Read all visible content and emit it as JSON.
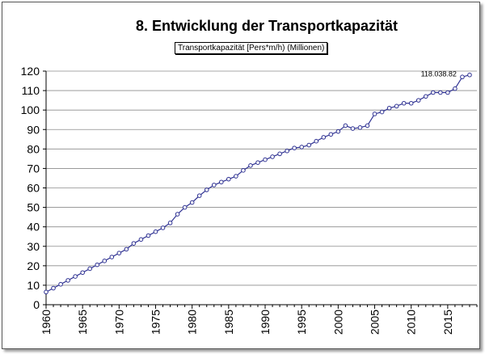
{
  "chart_data": {
    "type": "line",
    "title": "8. Entwicklung der Transportkapazität",
    "series": [
      {
        "name": "Transportkapazität [Pers*m/h) (Millionen)",
        "color": "#2e3192",
        "marker": "circle-open",
        "x": [
          1960,
          1961,
          1962,
          1963,
          1964,
          1965,
          1966,
          1967,
          1968,
          1969,
          1970,
          1971,
          1972,
          1973,
          1974,
          1975,
          1976,
          1977,
          1978,
          1979,
          1980,
          1981,
          1982,
          1983,
          1984,
          1985,
          1986,
          1987,
          1988,
          1989,
          1990,
          1991,
          1992,
          1993,
          1994,
          1995,
          1996,
          1997,
          1998,
          1999,
          2000,
          2001,
          2002,
          2003,
          2004,
          2005,
          2006,
          2007,
          2008,
          2009,
          2010,
          2011,
          2012,
          2013,
          2014,
          2015,
          2016,
          2017,
          2018
        ],
        "values": [
          6.5,
          8.5,
          10.5,
          12.5,
          14.5,
          16.5,
          18.5,
          20.5,
          22.5,
          24.5,
          26.5,
          28.5,
          31.5,
          33.5,
          35.5,
          37.5,
          39.5,
          42,
          46.5,
          50,
          52.5,
          56,
          59,
          61.5,
          63,
          64.5,
          66,
          69,
          71.5,
          73,
          74.5,
          76,
          77.5,
          79,
          80.5,
          81,
          82,
          84,
          86,
          87.5,
          89,
          92,
          90.5,
          91,
          92,
          98,
          99,
          101,
          102,
          103.5,
          103.5,
          105,
          107,
          109,
          109,
          109,
          111,
          117,
          118.04
        ]
      }
    ],
    "annotations": [
      {
        "text": "118.038.82",
        "x": 2018,
        "y": 118.04
      }
    ],
    "xlabel": "",
    "ylabel": "",
    "xlim": [
      1960,
      2019
    ],
    "ylim": [
      0,
      120
    ],
    "xticks": [
      1960,
      1965,
      1970,
      1975,
      1980,
      1985,
      1990,
      1995,
      2000,
      2005,
      2010,
      2015
    ],
    "yticks": [
      0,
      10,
      20,
      30,
      40,
      50,
      60,
      70,
      80,
      90,
      100,
      110,
      120
    ],
    "grid": "horizontal",
    "legend_position": "top-center"
  }
}
